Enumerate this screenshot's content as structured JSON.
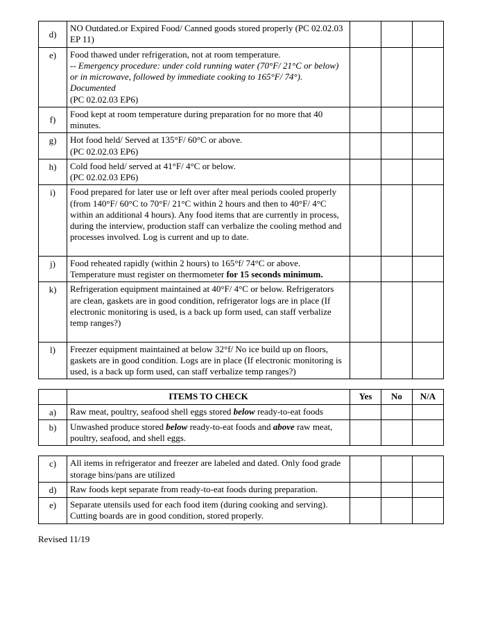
{
  "footer": "Revised 11/19",
  "section1_header": "ITEMS TO CHECK",
  "check_cols": {
    "yes": "Yes",
    "no": "No",
    "na": "N/A"
  },
  "table1": {
    "rows": [
      {
        "label": "d)",
        "label_vcenter": true,
        "html": "NO Outdated.or Expired Food/ Canned goods stored properly  (PC 02.02.03 EP 11)"
      },
      {
        "label": "e)",
        "html": "Food thawed under refrigeration, not at room temperature.<br><span class=\"italic\">-- Emergency procedure: under cold running water (70°F/ 21°C or below) or in microwave, followed by immediate cooking to 165°F/ 74°). Documented</span><br>(PC 02.02.03 EP6)"
      },
      {
        "label": "f)",
        "label_vcenter": true,
        "html": "Food kept at room temperature during preparation for no more that 40 minutes."
      },
      {
        "label": "g)",
        "html": "Hot food held/ Served at 135°F/ 60°C or above.<br>(PC 02.02.03 EP6)"
      },
      {
        "label": "h)",
        "html": "Cold food held/ served at 41°F/ 4°C or below.<br>(PC 02.02.03 EP6)"
      },
      {
        "label": "i)",
        "html": "Food prepared for later use or left over after meal periods cooled properly (from 140°F/ 60°C to 70°F/ 21°C within 2 hours and then to 40°F/ 4°C within an additional 4 hours). Any food items that are currently in process, during the interview, production staff can verbalize the cooling method and processes involved. Log is current and up to date.<br>&nbsp;"
      },
      {
        "label": "j)",
        "html": "Food reheated rapidly (within 2 hours) to 165°f/ 74°C or above. Temperature must register on thermometer <span class=\"bold\">for 15 seconds minimum.</span>"
      },
      {
        "label": "k)",
        "html": "Refrigeration equipment maintained at 40°F/ 4°C or below. Refrigerators are clean, gaskets are in good condition, refrigerator logs are in place (If electronic monitoring is used, is a back up form used, can staff verbalize temp ranges?)<br>&nbsp;"
      },
      {
        "label": "l)",
        "html": "Freezer equipment maintained at below 32°f/ No ice build up on floors, gaskets are in good condition. Logs are in place (If electronic monitoring is used, is a back up form used, can staff verbalize temp ranges?)"
      }
    ]
  },
  "table2": {
    "rows": [
      {
        "label": "a)",
        "html": "Raw meat, poultry, seafood shell eggs stored <span class=\"bold italic\">below</span> ready-to-eat foods"
      },
      {
        "label": "b)",
        "html": "Unwashed produce stored <span class=\"bold italic\">below</span> ready-to-eat foods and <span class=\"bold italic\">above</span> raw meat, poultry, seafood, and shell eggs."
      }
    ]
  },
  "table3": {
    "rows": [
      {
        "label": "c)",
        "html": "All items in refrigerator and freezer are labeled and dated. Only food grade storage bins/pans are utilized"
      },
      {
        "label": "d)",
        "html": "Raw foods kept separate from ready-to-eat foods during preparation."
      },
      {
        "label": "e)",
        "html": "Separate utensils used for each food item (during cooking and serving). Cutting boards are in good condition, stored properly."
      }
    ]
  }
}
